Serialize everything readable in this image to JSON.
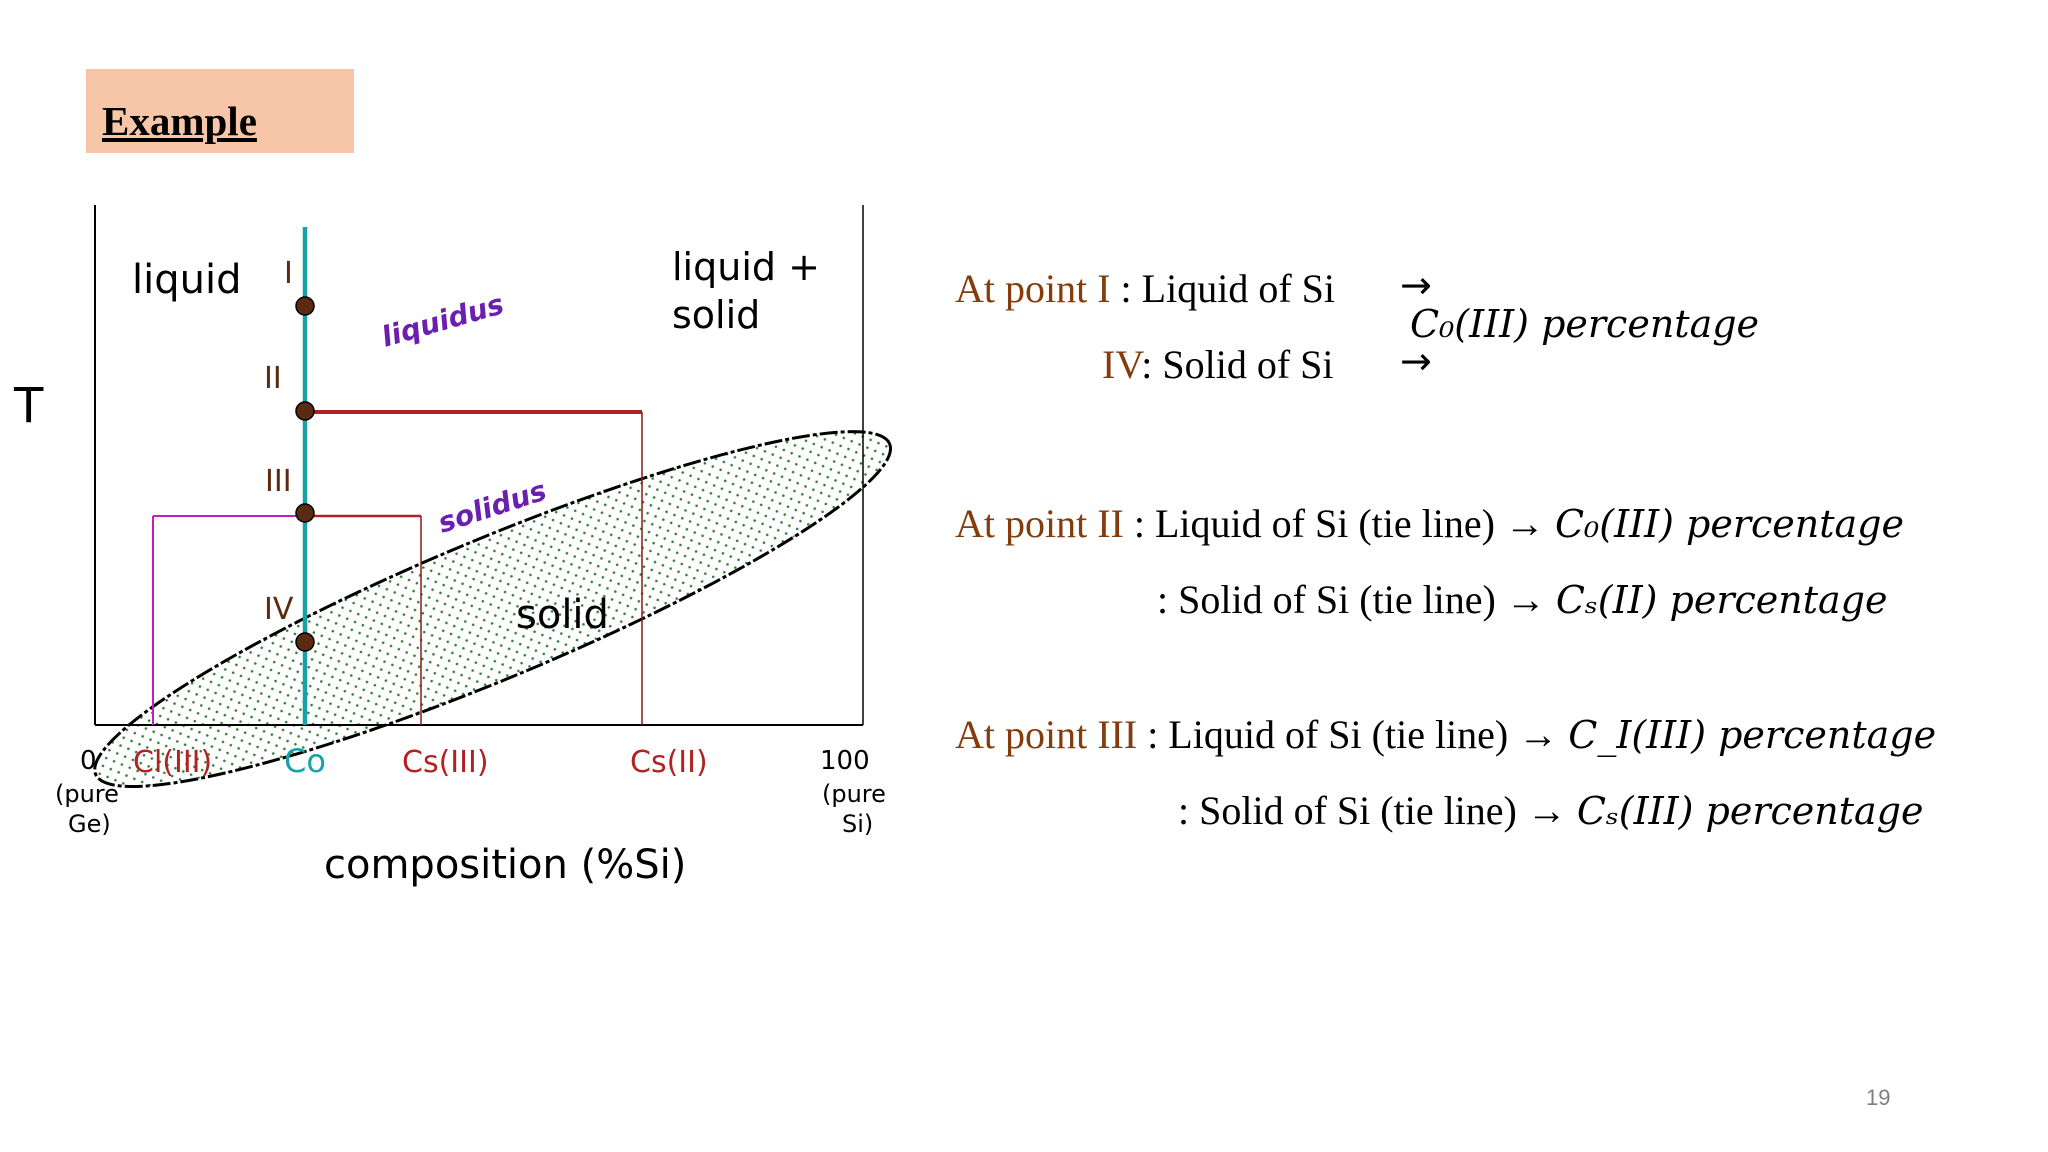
{
  "slide": {
    "title": "Example",
    "page_number": "19"
  },
  "diagram": {
    "t_axis_label": "T",
    "region_labels": {
      "liquid": "liquid",
      "liquid_solid_1": "liquid +",
      "liquid_solid_2": "solid",
      "solid": "solid"
    },
    "curve_labels": {
      "liquidus": "liquidus",
      "solidus": "solidus"
    },
    "point_labels": [
      "I",
      "II",
      "III",
      "IV"
    ],
    "x_ticks": {
      "left_value": "0",
      "left_note_1": "(pure",
      "left_note_2": "Ge)",
      "cl_iii": "Cl(III)",
      "co": "Co",
      "cs_iii": "Cs(III)",
      "cs_ii": "Cs(II)",
      "right_value": "100",
      "right_note_1": "(pure",
      "right_note_2": "Si)"
    },
    "x_axis_title": "composition (%Si)",
    "colors": {
      "co_line": "#17a2a8",
      "tie_line": "#b22222",
      "liquid_comp": "#c020c0",
      "curve_label": "#6a1fb0",
      "point": "#5a2a12",
      "dots": "#2e7d32"
    }
  },
  "statements": {
    "point1": {
      "label": "At point I",
      "liquid_text": " : Liquid of Si",
      "iv_label": "IV",
      "solid_text": ": Solid of Si",
      "arrow": "→",
      "result": "C₀(III) percentage"
    },
    "point2": {
      "label": "At point II",
      "liquid_text": "  : Liquid of Si  (tie line) → ",
      "liquid_result": "C₀(III) percentage",
      "solid_text": ": Solid of Si  (tie line)  → ",
      "solid_result": "Cₛ(II) percentage"
    },
    "point3": {
      "label": "At point III",
      "liquid_text": "  : Liquid of Si  (tie line) → ",
      "liquid_result": "C_I(III) percentage",
      "solid_text": ": Solid of Si  (tie line)  → ",
      "solid_result": "Cₛ(III) percentage"
    }
  }
}
